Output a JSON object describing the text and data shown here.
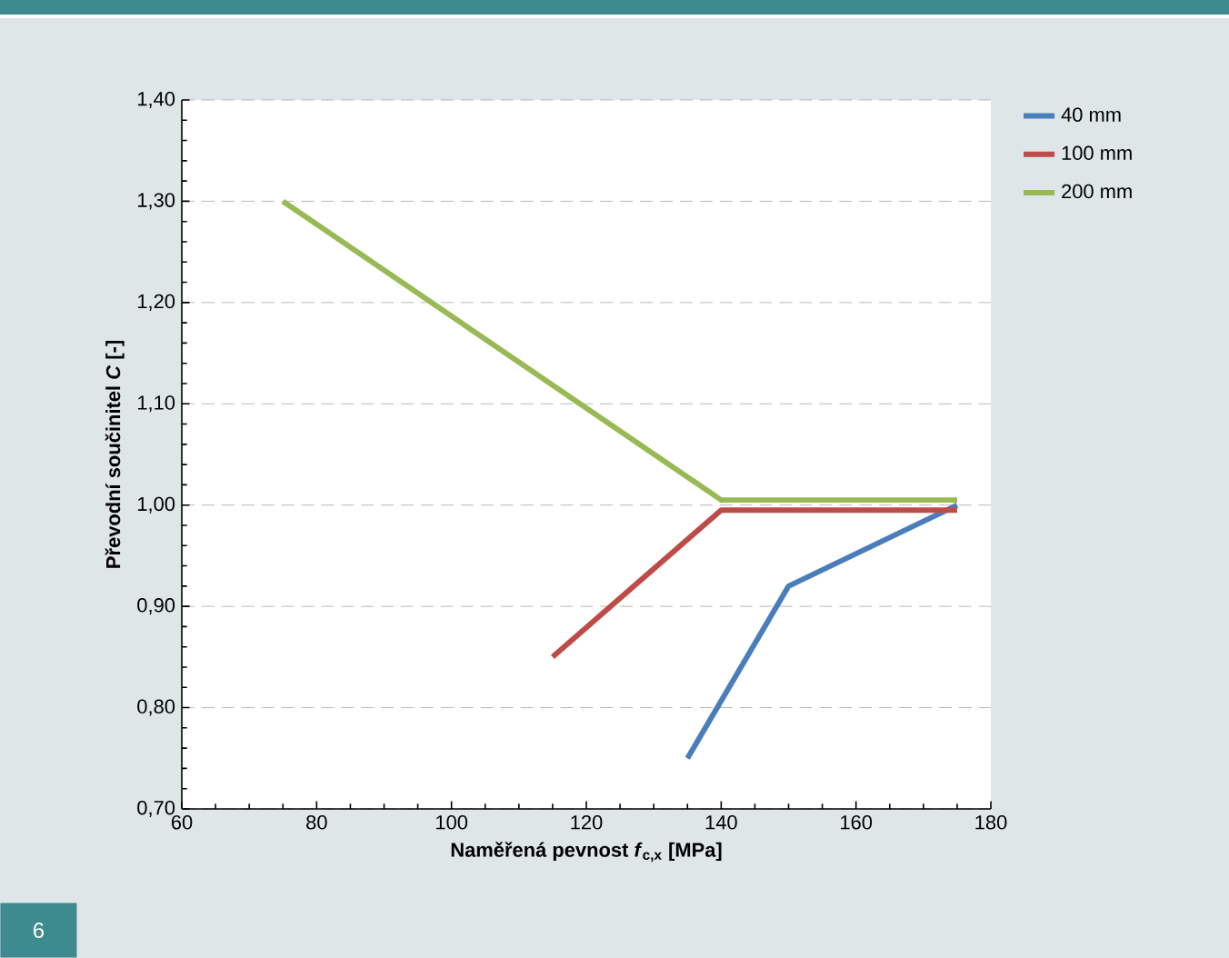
{
  "chart_data": {
    "type": "line",
    "xlabel": "Naměřená pevnost *f*$_{c,x}$ [MPa]",
    "ylabel": "Převodní součinitel *C* [-]",
    "xlim": [
      60,
      180
    ],
    "xticks": [
      60,
      80,
      100,
      120,
      140,
      160,
      180
    ],
    "ylim": [
      0.7,
      1.4
    ],
    "yticks": [
      {
        "value": 0.7,
        "label": "0,70"
      },
      {
        "value": 0.8,
        "label": "0,80"
      },
      {
        "value": 0.9,
        "label": "0,90"
      },
      {
        "value": 1.0,
        "label": "1,00"
      },
      {
        "value": 1.1,
        "label": "1,10"
      },
      {
        "value": 1.2,
        "label": "1,20"
      },
      {
        "value": 1.3,
        "label": "1,30"
      },
      {
        "value": 1.4,
        "label": "1,40"
      }
    ],
    "grid": "y",
    "legend": "right",
    "marker": "none",
    "line_style": "solid",
    "series": [
      {
        "name": "40 mm",
        "color": "#4a7ebb",
        "x": [
          135,
          150,
          175
        ],
        "values": [
          0.75,
          0.92,
          1.0
        ]
      },
      {
        "name": "100 mm",
        "color": "#be4b48",
        "x": [
          115,
          140,
          175
        ],
        "values": [
          0.85,
          0.995,
          0.995
        ]
      },
      {
        "name": "200 mm",
        "color": "#98b954",
        "x": [
          75,
          140,
          175
        ],
        "values": [
          1.3,
          1.005,
          1.005
        ]
      }
    ],
    "annotations": [
      "6"
    ]
  }
}
